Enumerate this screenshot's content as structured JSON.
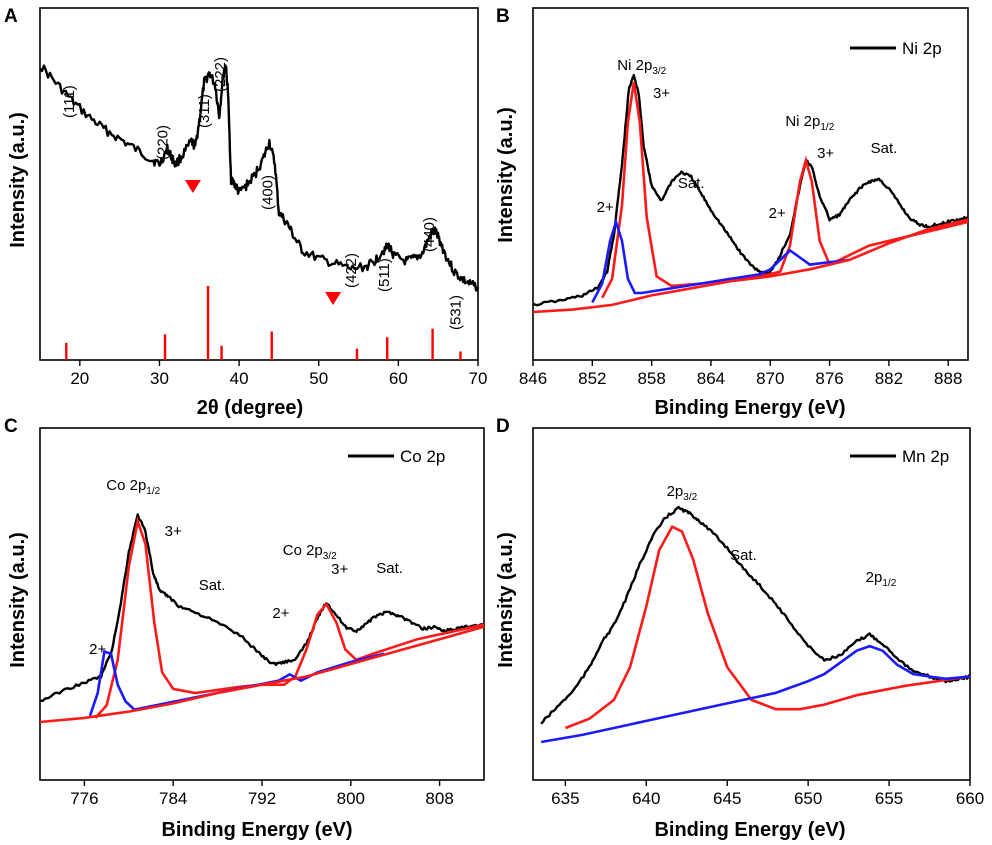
{
  "chart_data": [
    {
      "panel": "A",
      "type": "line",
      "xlabel": "2θ (degree)",
      "ylabel": "Intensity (a.u.)",
      "xlim": [
        15,
        70
      ],
      "xticks": [
        20,
        30,
        40,
        50,
        60,
        70
      ],
      "tick_labels": [
        "20",
        "30",
        "40",
        "50",
        "60",
        "70"
      ],
      "series": [
        {
          "name": "XRD pattern",
          "color": "#000000",
          "x": [
            15,
            17,
            19,
            21,
            23,
            25,
            27,
            29,
            30,
            31,
            31.5,
            32,
            33,
            34,
            34.5,
            35,
            35.6,
            36.3,
            37,
            37.5,
            38,
            38.3,
            38.6,
            39,
            39.5,
            40,
            41,
            42,
            43,
            43.8,
            44.5,
            45,
            46,
            47,
            48,
            50,
            52,
            54,
            56,
            57,
            58,
            58.8,
            59.5,
            61,
            62,
            63,
            64,
            64.6,
            65.2,
            66,
            67,
            68,
            69,
            70
          ],
          "y": [
            100,
            93,
            86,
            80,
            75,
            71,
            67,
            63,
            61,
            67,
            64,
            61,
            65,
            70,
            68,
            78,
            93,
            97,
            92,
            80,
            96,
            100,
            90,
            55,
            53,
            50,
            53,
            57,
            63,
            70,
            61,
            42,
            38,
            32,
            27,
            24,
            22,
            20,
            21,
            23,
            27,
            29,
            25,
            23,
            24,
            26,
            33,
            35,
            31,
            25,
            19,
            16,
            14,
            13
          ]
        },
        {
          "name": "Reference peaks",
          "color": "#ff0000",
          "x": [
            18.3,
            30.7,
            36.1,
            37.8,
            44.1,
            54.8,
            58.6,
            64.3,
            67.8
          ],
          "y": [
            6,
            9,
            26,
            5,
            10,
            4,
            8,
            11,
            3
          ]
        }
      ],
      "peak_labels": [
        {
          "text": "(111)",
          "x": 19.3
        },
        {
          "text": "(220)",
          "x": 31.0
        },
        {
          "text": "(311)",
          "x": 36.2
        },
        {
          "text": "(222)",
          "x": 38.2
        },
        {
          "text": "(400)",
          "x": 44.2
        },
        {
          "text": "(422)",
          "x": 54.7
        },
        {
          "text": "(511)",
          "x": 58.8
        },
        {
          "text": "(440)",
          "x": 64.5
        },
        {
          "text": "(531)",
          "x": 67.8
        }
      ],
      "markers": [
        {
          "x": 34.2
        },
        {
          "x": 51.8
        }
      ]
    },
    {
      "panel": "B",
      "type": "line",
      "xlabel": "Binding Energy (eV)",
      "ylabel": "Intensity (a.u.)",
      "xlim": [
        846,
        890
      ],
      "tick_labels": [
        "846",
        "852",
        "858",
        "864",
        "870",
        "876",
        "882",
        "888"
      ],
      "legend": "Ni 2p",
      "annotations": [
        {
          "text": "Ni 2p",
          "sub": "3/2",
          "x": 857.0
        },
        {
          "text": "3+",
          "x": 859.0
        },
        {
          "text": "Sat.",
          "x": 862.0
        },
        {
          "text": "2+",
          "x": 853.3
        },
        {
          "text": "Ni 2p",
          "sub": "1/2",
          "x": 874.0
        },
        {
          "text": "3+",
          "x": 875.6
        },
        {
          "text": "Sat.",
          "x": 881.5
        },
        {
          "text": "2+",
          "x": 870.7
        }
      ],
      "series": [
        {
          "name": "Ni 2p",
          "color": "#000000",
          "x": [
            846,
            849,
            851,
            852.5,
            853.5,
            854.2,
            855,
            855.7,
            856.2,
            856.7,
            857.2,
            858,
            859,
            860,
            861,
            862,
            863,
            864,
            865,
            866,
            867,
            868,
            869,
            869.8,
            870.5,
            871,
            872,
            873,
            873.6,
            874.2,
            875,
            876,
            877,
            878,
            879,
            880,
            881,
            882,
            883,
            884,
            885,
            886,
            887,
            888,
            889,
            890
          ],
          "y": [
            3,
            5,
            7,
            10,
            17,
            33,
            62,
            94,
            100,
            92,
            70,
            53,
            47,
            55,
            59,
            57,
            50,
            43,
            37,
            31,
            25,
            20,
            17,
            16,
            20,
            24,
            33,
            53,
            64,
            61,
            49,
            39,
            41,
            47,
            52,
            55,
            56,
            52,
            46,
            40,
            37,
            36,
            37,
            38,
            39,
            40
          ]
        },
        {
          "name": "Ni3+ 2p3/2 fit",
          "color": "#ff0000",
          "x": [
            853,
            854,
            855,
            855.6,
            856.2,
            856.8,
            857.5,
            858.5,
            860,
            863,
            866,
            869,
            871,
            872,
            873,
            873.6,
            874.2,
            875,
            876,
            877,
            880,
            884,
            888,
            890
          ],
          "y": [
            6,
            14,
            45,
            80,
            97,
            80,
            40,
            15,
            11,
            12,
            14,
            15,
            17,
            28,
            55,
            64,
            55,
            30,
            20,
            22,
            28,
            32,
            36,
            38
          ]
        },
        {
          "name": "Ni2+ fit",
          "color": "#0000ff",
          "x": [
            852,
            853,
            853.8,
            854.4,
            855,
            855.6,
            856.3,
            857,
            869,
            870,
            871,
            872,
            873,
            874,
            876,
            878
          ],
          "y": [
            4,
            12,
            30,
            38,
            30,
            14,
            8,
            8,
            16,
            18,
            22,
            26,
            23,
            20,
            21,
            22
          ]
        },
        {
          "name": "Background",
          "color": "#ff0000",
          "x": [
            846,
            850,
            854,
            858,
            862,
            866,
            870,
            874,
            878,
            882,
            886,
            890
          ],
          "y": [
            0,
            1,
            3,
            7,
            10,
            13,
            15,
            18,
            22,
            29,
            35,
            39
          ]
        }
      ]
    },
    {
      "panel": "C",
      "type": "line",
      "xlabel": "Binding Energy (eV)",
      "ylabel": "Intensity (a.u.)",
      "xlim": [
        772,
        812
      ],
      "tick_labels": [
        "776",
        "784",
        "792",
        "800",
        "808"
      ],
      "legend": "Co 2p",
      "annotations": [
        {
          "text": "Co 2p",
          "sub": "1/2",
          "x": 780.4
        },
        {
          "text": "3+",
          "x": 784.0
        },
        {
          "text": "Sat.",
          "x": 787.5
        },
        {
          "text": "2+",
          "x": 777.2
        },
        {
          "text": "Co 2p",
          "sub": "3/2",
          "x": 796.3
        },
        {
          "text": "3+",
          "x": 799.0
        },
        {
          "text": "Sat.",
          "x": 803.5
        },
        {
          "text": "2+",
          "x": 793.7
        }
      ],
      "series": [
        {
          "name": "Co 2p",
          "color": "#000000",
          "x": [
            772,
            774,
            776,
            777.5,
            778.5,
            779.3,
            780,
            780.8,
            781.5,
            782.2,
            782.8,
            783.5,
            784.5,
            786,
            788,
            790,
            792,
            793,
            794,
            795,
            796,
            797,
            797.8,
            798.5,
            799.5,
            800.5,
            801.5,
            802.5,
            803.5,
            804.5,
            805.5,
            806.5,
            807.5,
            808.5,
            809.5,
            810.5,
            812
          ],
          "y": [
            10,
            15,
            19,
            22,
            35,
            58,
            82,
            100,
            92,
            72,
            63,
            61,
            56,
            53,
            48,
            42,
            32,
            28,
            29,
            30,
            38,
            50,
            58,
            53,
            46,
            44,
            48,
            52,
            53,
            51,
            48,
            45,
            46,
            44,
            45,
            46,
            47
          ]
        },
        {
          "name": "Co3+ fit",
          "color": "#ff0000",
          "x": [
            777,
            778,
            779,
            780,
            780.8,
            781.5,
            782.3,
            783,
            784,
            786,
            790,
            792,
            794,
            795,
            796,
            797,
            797.8,
            798.7,
            799.5,
            800.5,
            802,
            806,
            812
          ],
          "y": [
            2,
            8,
            30,
            75,
            97,
            86,
            48,
            24,
            16,
            14,
            17,
            18,
            18,
            22,
            35,
            52,
            57,
            48,
            35,
            30,
            33,
            40,
            47
          ]
        },
        {
          "name": "Co2+ fit",
          "color": "#0000ff",
          "x": [
            776.5,
            777.2,
            777.8,
            778.4,
            779,
            779.7,
            780.5,
            793.5,
            794.5,
            795.5,
            797,
            800,
            803
          ],
          "y": [
            3,
            14,
            34,
            33,
            18,
            10,
            6,
            20,
            23,
            20,
            24,
            29,
            33
          ]
        },
        {
          "name": "Background",
          "color": "#ff0000",
          "x": [
            772,
            776,
            780,
            784,
            788,
            792,
            796,
            800,
            804,
            808,
            812
          ],
          "y": [
            0,
            2,
            5,
            9,
            14,
            18,
            22,
            28,
            34,
            40,
            46
          ]
        }
      ]
    },
    {
      "panel": "D",
      "type": "line",
      "xlabel": "Binding Energy (eV)",
      "ylabel": "Intensity (a.u.)",
      "xlim": [
        633,
        660
      ],
      "tick_labels": [
        "635",
        "640",
        "645",
        "650",
        "655",
        "660"
      ],
      "legend": "Mn 2p",
      "annotations": [
        {
          "text": "2p",
          "sub": "3/2",
          "x": 642.2
        },
        {
          "text": "Sat.",
          "x": 646.0
        },
        {
          "text": "2p",
          "sub": "1/2",
          "x": 654.5
        }
      ],
      "series": [
        {
          "name": "Mn 2p",
          "color": "#000000",
          "x": [
            633.5,
            634.5,
            635.5,
            636.5,
            637.2,
            638,
            638.8,
            639.6,
            640.4,
            641.2,
            642,
            642.6,
            643.2,
            644,
            645,
            646,
            647,
            648,
            649,
            650,
            651,
            652,
            653,
            653.8,
            654.6,
            655.5,
            656.5,
            657.5,
            658.5,
            659.5,
            660
          ],
          "y": [
            8,
            15,
            22,
            32,
            42,
            50,
            62,
            76,
            88,
            96,
            100,
            98,
            95,
            90,
            83,
            74,
            67,
            59,
            50,
            41,
            35,
            37,
            43,
            46,
            42,
            36,
            30,
            28,
            26,
            27,
            28
          ]
        },
        {
          "name": "Mn 2p3/2 fit",
          "color": "#ff0000",
          "x": [
            635,
            636.5,
            638,
            639,
            640,
            640.8,
            641.6,
            642.2,
            642.9,
            643.8,
            645,
            646.5,
            648,
            649.5,
            651,
            653,
            656,
            660
          ],
          "y": [
            6,
            10,
            18,
            32,
            58,
            82,
            92,
            90,
            78,
            55,
            32,
            18,
            14,
            14,
            16,
            20,
            24,
            28
          ]
        },
        {
          "name": "Mn 2p1/2 fit",
          "color": "#0000ff",
          "x": [
            633.5,
            636,
            638,
            640,
            642,
            644,
            646,
            648,
            650,
            651,
            652,
            653,
            653.8,
            654.6,
            655.5,
            656.5,
            657.5,
            658.5,
            660
          ],
          "y": [
            0,
            3,
            6,
            9,
            12,
            15,
            18,
            21,
            26,
            29,
            34,
            39,
            41,
            39,
            33,
            29,
            28,
            27,
            28
          ]
        }
      ]
    }
  ],
  "panels": {
    "A": {
      "label": "A",
      "xlabel": "2θ (degree)",
      "ylabel": "Intensity (a.u.)"
    },
    "B": {
      "label": "B",
      "xlabel": "Binding Energy (eV)",
      "ylabel": "Intensity (a.u.)",
      "legend": "Ni 2p"
    },
    "C": {
      "label": "C",
      "xlabel": "Binding Energy (eV)",
      "ylabel": "Intensity (a.u.)",
      "legend": "Co 2p"
    },
    "D": {
      "label": "D",
      "xlabel": "Binding Energy (eV)",
      "ylabel": "Intensity (a.u.)",
      "legend": "Mn 2p"
    }
  }
}
